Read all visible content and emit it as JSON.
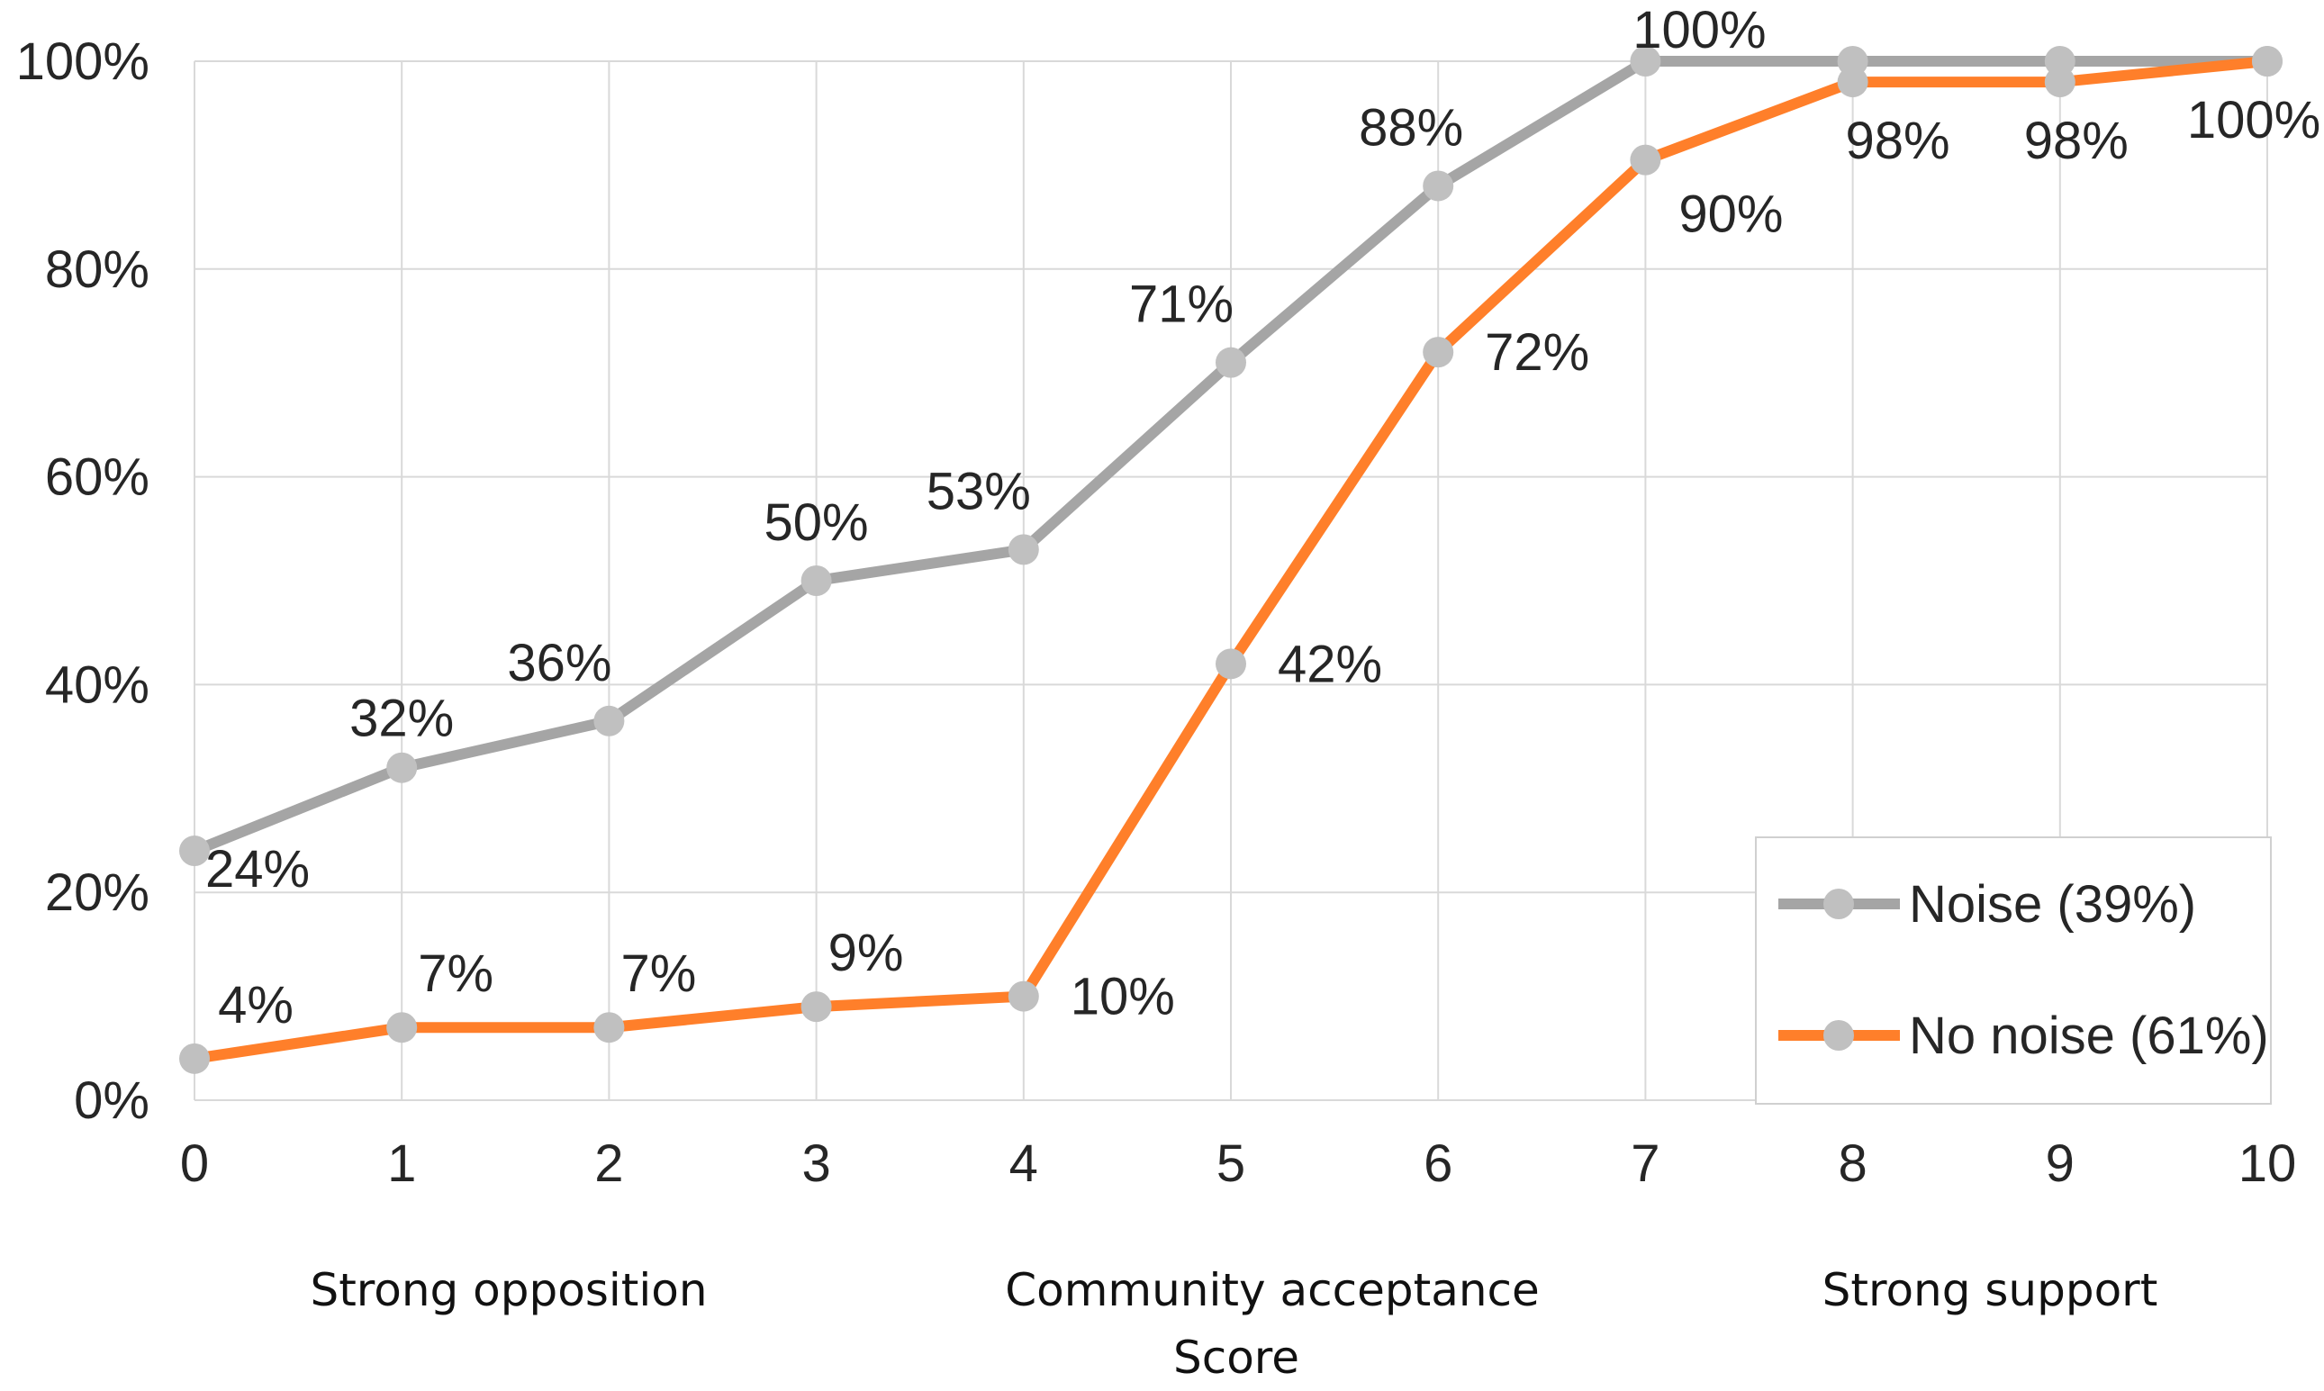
{
  "chart_data": {
    "type": "line",
    "title": "",
    "xlabel": "Score",
    "ylabel": "",
    "x": [
      0,
      1,
      2,
      3,
      4,
      5,
      6,
      7,
      8,
      9,
      10
    ],
    "x_tick_labels": [
      "0",
      "1",
      "2",
      "3",
      "4",
      "5",
      "6",
      "7",
      "8",
      "9",
      "10"
    ],
    "y_tick_labels": [
      "0%",
      "20%",
      "40%",
      "60%",
      "80%",
      "100%"
    ],
    "ylim": [
      0,
      100
    ],
    "xlim": [
      0,
      10
    ],
    "grid": true,
    "legend_position": "bottom-right",
    "axis_captions": {
      "left": "Strong opposition",
      "center": "Community acceptance",
      "right": "Strong support",
      "score": "Score"
    },
    "series": [
      {
        "name": "Noise (39%)",
        "color": "#a5a5a5",
        "values": [
          24,
          32,
          36.5,
          50,
          53,
          71,
          88,
          100,
          100,
          100,
          100
        ],
        "labels": [
          "24%",
          "32%",
          "36%",
          "50%",
          "53%",
          "71%",
          "88%",
          "100%",
          "",
          "",
          ""
        ]
      },
      {
        "name": "No noise (61%)",
        "color": "#ff7f2a",
        "values": [
          4,
          7,
          7,
          9,
          10,
          42,
          72,
          90.5,
          98,
          98,
          100
        ],
        "labels": [
          "4%",
          "7%",
          "7%",
          "9%",
          "10%",
          "42%",
          "72%",
          "90%",
          "98%",
          "98%",
          "100%"
        ]
      }
    ],
    "marker_color": "#c0c0c0"
  }
}
